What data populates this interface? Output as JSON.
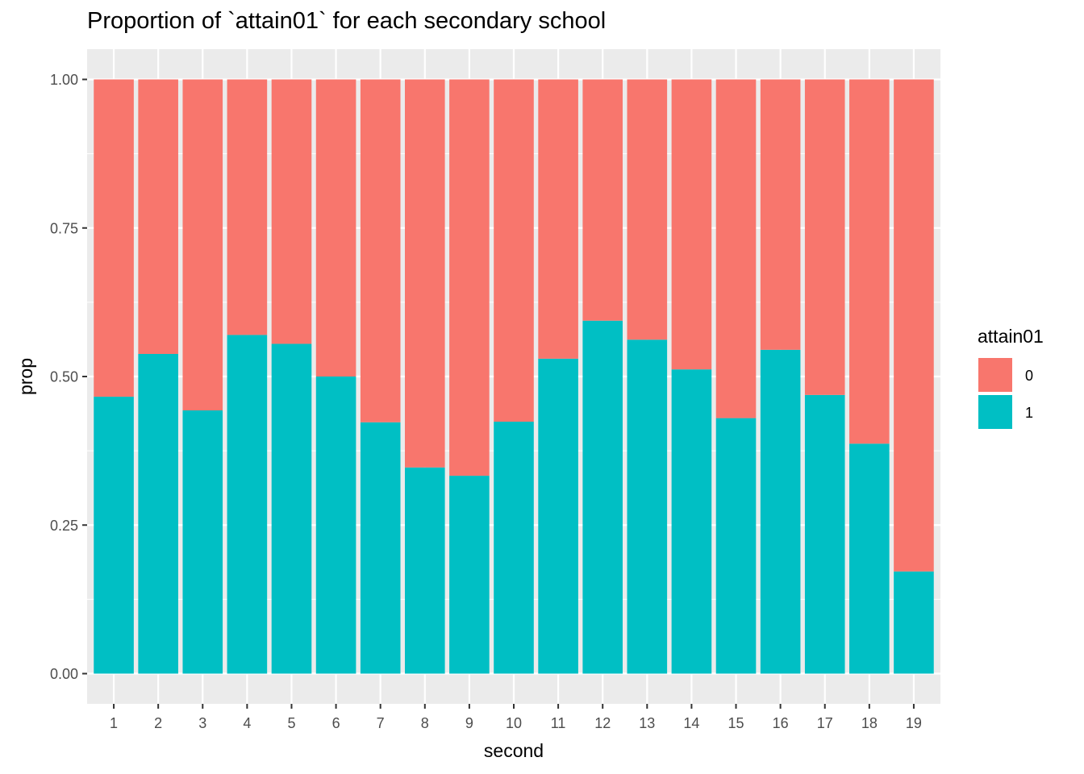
{
  "chart_data": {
    "type": "bar",
    "stacked": true,
    "title": "Proportion of `attain01` for each secondary school",
    "xlabel": "second",
    "ylabel": "prop",
    "ylim": [
      0,
      1
    ],
    "y_ticks": [
      "0.00",
      "0.25",
      "0.50",
      "0.75",
      "1.00"
    ],
    "y_tick_values": [
      0,
      0.25,
      0.5,
      0.75,
      1.0
    ],
    "categories": [
      "1",
      "2",
      "3",
      "4",
      "5",
      "6",
      "7",
      "8",
      "9",
      "10",
      "11",
      "12",
      "13",
      "14",
      "15",
      "16",
      "17",
      "18",
      "19"
    ],
    "series": [
      {
        "name": "1",
        "color": "#00BFC4",
        "values": [
          0.466,
          0.538,
          0.443,
          0.57,
          0.555,
          0.5,
          0.423,
          0.347,
          0.333,
          0.424,
          0.53,
          0.594,
          0.562,
          0.512,
          0.43,
          0.545,
          0.469,
          0.387,
          0.172
        ]
      },
      {
        "name": "0",
        "color": "#F8766D",
        "values": [
          0.534,
          0.462,
          0.557,
          0.43,
          0.445,
          0.5,
          0.577,
          0.653,
          0.667,
          0.576,
          0.47,
          0.406,
          0.438,
          0.488,
          0.57,
          0.455,
          0.531,
          0.613,
          0.828
        ]
      }
    ],
    "legend": {
      "title": "attain01",
      "placement": "right",
      "items": [
        {
          "label": "0",
          "color": "#F8766D"
        },
        {
          "label": "1",
          "color": "#00BFC4"
        }
      ]
    },
    "grid": true,
    "panel_color": "#EBEBEB",
    "grid_color": "#FFFFFF"
  }
}
